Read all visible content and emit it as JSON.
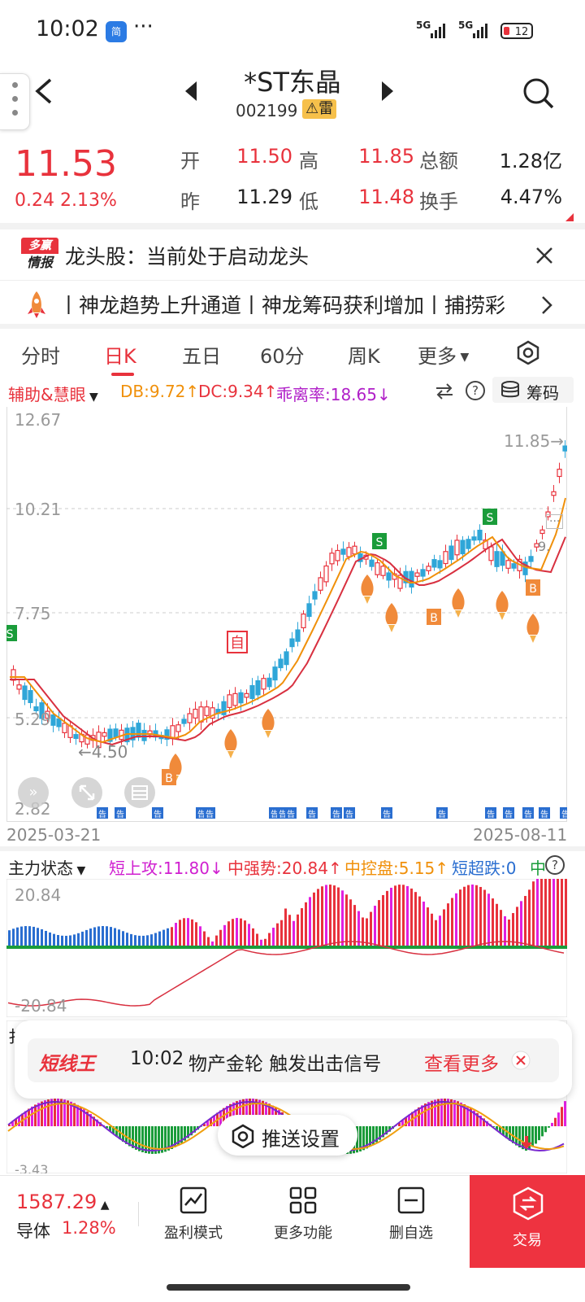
{
  "status_bar": {
    "time": "10:02",
    "app_badge": "简",
    "dots": "···",
    "net1": "5G",
    "net2": "5G",
    "battery": "12"
  },
  "header": {
    "title": "*ST东晶",
    "code": "002199",
    "warning_badge": "雷",
    "back_icon": "chevron-left-icon",
    "prev_icon": "triangle-left-icon",
    "next_icon": "triangle-right-icon",
    "search_icon": "search-icon"
  },
  "quote": {
    "price": "11.53",
    "change": "0.24",
    "change_pct": "2.13%",
    "open_label": "开",
    "open": "11.50",
    "high_label": "高",
    "high": "11.85",
    "amount_label": "总额",
    "amount": "1.28亿",
    "prev_label": "昨",
    "prev": "11.29",
    "low_label": "低",
    "low": "11.48",
    "turnover_label": "换手",
    "turnover": "4.47%"
  },
  "news": {
    "logo_line1": "多赢",
    "logo_line2": "情报",
    "text": "龙头股：当前处于启动龙头"
  },
  "ticker": {
    "text": "丨神龙趋势上升通道丨神龙筹码获利增加丨捕捞彩"
  },
  "tabs": [
    {
      "label": "分时"
    },
    {
      "label": "日K"
    },
    {
      "label": "五日"
    },
    {
      "label": "60分"
    },
    {
      "label": "周K"
    },
    {
      "label": "更多"
    }
  ],
  "indicator": {
    "name": "辅助&慧眼",
    "db": "DB:9.72↑",
    "dc": "DC:9.34↑",
    "bias": "乖离率:18.65↓",
    "chips": "筹码"
  },
  "kchart": {
    "y_labels": [
      "12.67",
      "10.21",
      "7.75",
      "5.29",
      "2.82"
    ],
    "high_mark": "11.85→",
    "low_mark": "←4.50",
    "start_date": "2025-03-21",
    "end_date": "2025-08-11",
    "zi_marker": "自",
    "gao": "告",
    "s_mark": "S",
    "b_mark": "B",
    "right_partial": "9.",
    "dots_mark": "···"
  },
  "subchart": {
    "name": "主力状态",
    "a": "短上攻:11.80↓",
    "b": "中强势:20.84↑",
    "c": "中控盘:5.15↑",
    "d": "短超跌:0",
    "e": "中",
    "y_top": "20.84",
    "y_bottom": "-20.84"
  },
  "third_chart": {
    "y_bottom": "-3.43",
    "partial_label": "扌"
  },
  "popup": {
    "brand": "短线王",
    "time": "10:02",
    "message": "物产金轮 触发出击信号",
    "more": "查看更多"
  },
  "push_button": {
    "label": "推送设置"
  },
  "bottom_bar": {
    "index_value": "1587.29",
    "index_name": "导体",
    "index_change": "1.28%",
    "buttons": [
      {
        "label": "盈利模式",
        "icon": "chart-trend-icon"
      },
      {
        "label": "更多功能",
        "icon": "grid-icon"
      },
      {
        "label": "删自选",
        "icon": "minus-box-icon"
      }
    ],
    "trade_label": "交易"
  }
}
